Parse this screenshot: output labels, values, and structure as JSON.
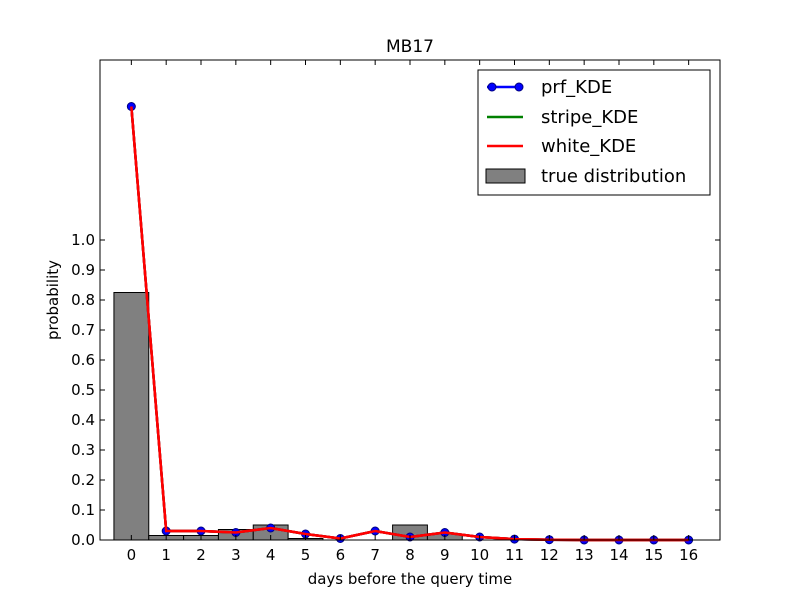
{
  "chart_data": {
    "type": "bar+line",
    "title": "MB17",
    "xlabel": "days before the query time",
    "ylabel": "probability",
    "x": [
      0,
      1,
      2,
      3,
      4,
      5,
      6,
      7,
      8,
      9,
      10,
      11,
      12,
      13,
      14,
      15,
      16
    ],
    "xlim": [
      -0.9,
      16.9
    ],
    "ylim": [
      0,
      1.6
    ],
    "yticks": [
      0.0,
      0.1,
      0.2,
      0.3,
      0.4,
      0.5,
      0.6,
      0.7,
      0.8,
      0.9,
      1.0
    ],
    "ytick_labels": [
      "0.0",
      "0.1",
      "0.2",
      "0.3",
      "0.4",
      "0.5",
      "0.6",
      "0.7",
      "0.8",
      "0.9",
      "1.0"
    ],
    "bars": {
      "name": "true distribution",
      "color": "#808080",
      "values": [
        0.825,
        0.015,
        0.015,
        0.035,
        0.05,
        0.005,
        0.0,
        0.0,
        0.05,
        0.02,
        0.0,
        0.0,
        0.0,
        0.0,
        0.0,
        0.0,
        0.0
      ]
    },
    "series": [
      {
        "name": "prf_KDE",
        "color": "#0000ff",
        "marker": "circle",
        "values": [
          1.445,
          0.03,
          0.03,
          0.025,
          0.04,
          0.02,
          0.005,
          0.03,
          0.01,
          0.025,
          0.01,
          0.003,
          0.001,
          0.0,
          0.0,
          0.0,
          0.0
        ]
      },
      {
        "name": "stripe_KDE",
        "color": "#008000",
        "marker": "none",
        "values": [
          1.445,
          0.03,
          0.03,
          0.025,
          0.04,
          0.02,
          0.005,
          0.03,
          0.01,
          0.025,
          0.01,
          0.003,
          0.001,
          0.0,
          0.0,
          0.0,
          0.0
        ]
      },
      {
        "name": "white_KDE",
        "color": "#ff0000",
        "marker": "none",
        "values": [
          1.445,
          0.03,
          0.03,
          0.025,
          0.04,
          0.02,
          0.005,
          0.03,
          0.01,
          0.025,
          0.01,
          0.003,
          0.001,
          0.0,
          0.0,
          0.0,
          0.0
        ]
      }
    ],
    "legend": {
      "placement": "top-right",
      "entries": [
        "prf_KDE",
        "stripe_KDE",
        "white_KDE",
        "true distribution"
      ]
    },
    "grid": false
  }
}
